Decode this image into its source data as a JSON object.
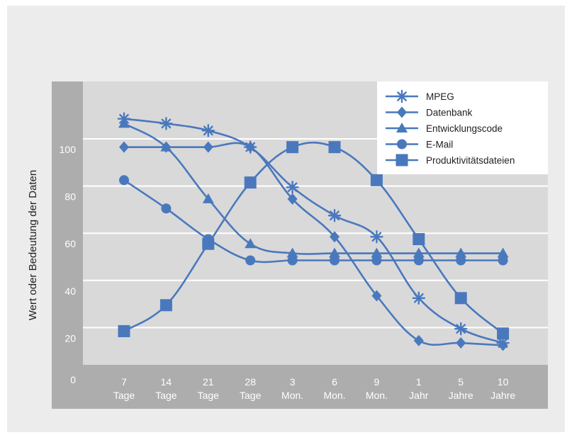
{
  "chart_data": {
    "type": "line",
    "title": "",
    "xlabel": "",
    "ylabel": "Wert oder Bedeutung der Daten",
    "ylim": [
      0,
      120
    ],
    "yticks": [
      0,
      20,
      40,
      60,
      80,
      100
    ],
    "categories": [
      [
        "7",
        "Tage"
      ],
      [
        "14",
        "Tage"
      ],
      [
        "21",
        "Tage"
      ],
      [
        "28",
        "Tage"
      ],
      [
        "3",
        "Mon."
      ],
      [
        "6",
        "Mon."
      ],
      [
        "9",
        "Mon."
      ],
      [
        "1",
        "Jahr"
      ],
      [
        "5",
        "Jahre"
      ],
      [
        "10",
        "Jahre"
      ]
    ],
    "legend_position": "top-right",
    "grid": true,
    "series": [
      {
        "name": "MPEG",
        "marker": "asterisk",
        "values": [
          113,
          111,
          108,
          101,
          84,
          72,
          63,
          37,
          24,
          18
        ]
      },
      {
        "name": "Datenbank",
        "marker": "diamond",
        "values": [
          101,
          101,
          101,
          101,
          79,
          63,
          38,
          19,
          18,
          17
        ]
      },
      {
        "name": "Entwicklungscode",
        "marker": "triangle",
        "values": [
          111,
          101,
          79,
          60,
          56,
          56,
          56,
          56,
          56,
          56
        ]
      },
      {
        "name": "E-Mail",
        "marker": "circle",
        "values": [
          87,
          75,
          62,
          53,
          53,
          53,
          53,
          53,
          53,
          53
        ]
      },
      {
        "name": "Produktivitätsdateien",
        "marker": "square",
        "values": [
          23,
          34,
          60,
          86,
          101,
          101,
          87,
          62,
          37,
          22
        ]
      }
    ],
    "colors": {
      "series": "#4a78bd",
      "plot_bg": "#d9d9d9",
      "frame_bg": "#ececec",
      "axis_text": "#ffffff",
      "grid": "#ffffff"
    }
  }
}
